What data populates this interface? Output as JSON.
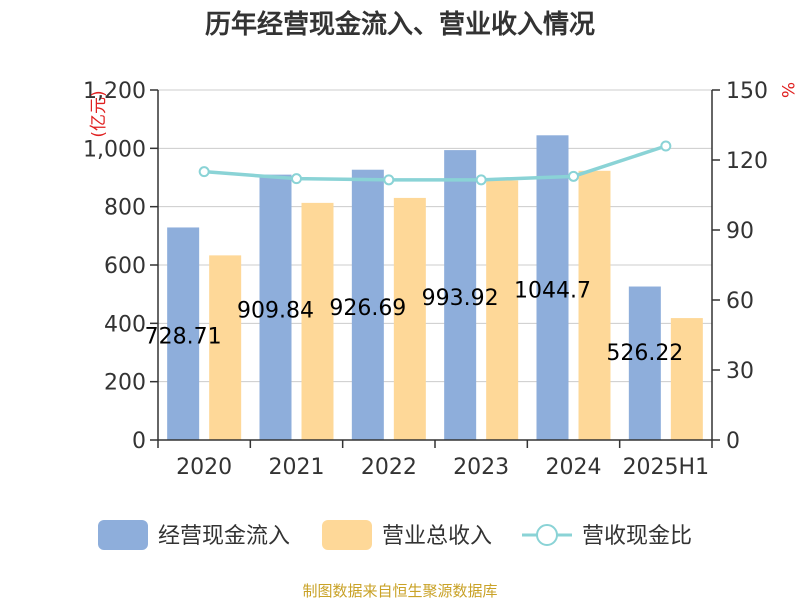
{
  "title": "历年经营现金流入、营业收入情况",
  "source_text": "制图数据来自恒生聚源数据库",
  "colors": {
    "cash_inflow": "#8eaedb",
    "revenue": "#fed898",
    "ratio": "#8ad3d6",
    "axis": "#333333",
    "grid": "#cccccc"
  },
  "chart_data": {
    "type": "bar",
    "title": "历年经营现金流入、营业收入情况",
    "categories": [
      "2020",
      "2021",
      "2022",
      "2023",
      "2024",
      "2025H1"
    ],
    "y_left": {
      "unit": "亿元",
      "ylim": [
        0,
        1200
      ],
      "ticks": [
        0,
        200,
        400,
        600,
        800,
        1000,
        1200
      ],
      "tick_labels": [
        "0",
        "200",
        "400",
        "600",
        "800",
        "1,000",
        "1,200"
      ]
    },
    "y_right": {
      "unit": "%",
      "ylim": [
        0,
        150
      ],
      "ticks": [
        0,
        30,
        60,
        90,
        120,
        150
      ],
      "tick_labels": [
        "0",
        "30",
        "60",
        "90",
        "120",
        "150"
      ]
    },
    "grid": true,
    "legend_position": "bottom",
    "series": [
      {
        "name": "经营现金流入",
        "type": "bar",
        "axis": "left",
        "values": [
          728.71,
          909.84,
          926.69,
          993.92,
          1044.7,
          526.22
        ],
        "data_labels": [
          "728.71",
          "909.84",
          "926.69",
          "993.92",
          "1044.7",
          "526.22"
        ]
      },
      {
        "name": "营业总收入",
        "type": "bar",
        "axis": "left",
        "values": [
          633,
          813,
          830,
          890,
          923,
          418
        ]
      },
      {
        "name": "营收现金比",
        "type": "line",
        "axis": "right",
        "values": [
          115.0,
          112.0,
          111.5,
          111.5,
          113.0,
          126.0
        ]
      }
    ]
  }
}
